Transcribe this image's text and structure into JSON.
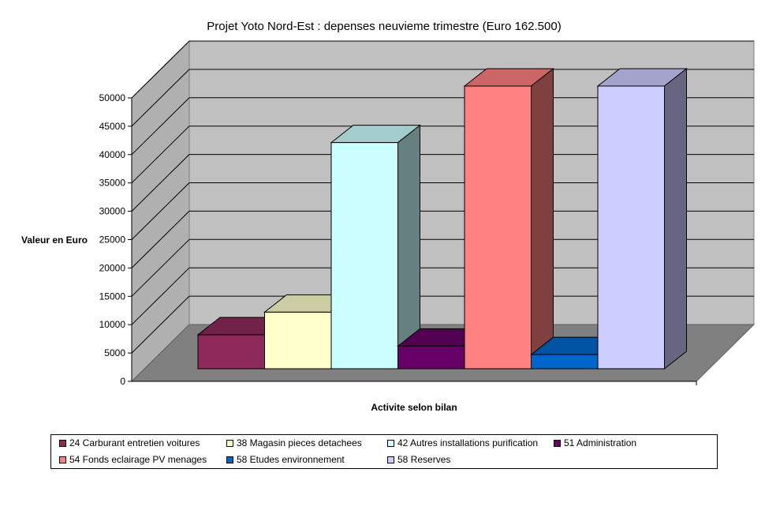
{
  "chart_data": {
    "type": "bar",
    "title": "Projet Yoto Nord-Est : depenses neuvieme trimestre (Euro 162.500)",
    "xlabel": "Activite selon bilan",
    "ylabel": "Valeur en Euro",
    "ylim": [
      0,
      50000
    ],
    "yticks": [
      "0",
      "5000",
      "10000",
      "15000",
      "20000",
      "25000",
      "30000",
      "35000",
      "40000",
      "45000",
      "50000"
    ],
    "grid": true,
    "legend_position": "bottom",
    "series": [
      {
        "name": "24 Carburant entretien voitures",
        "value": 6000,
        "color": "#8E2A5A"
      },
      {
        "name": "38 Magasin pieces detachees",
        "value": 10000,
        "color": "#FFFFCC"
      },
      {
        "name": "42 Autres installations purification",
        "value": 40000,
        "color": "#CCFFFF"
      },
      {
        "name": "51 Administration",
        "value": 4000,
        "color": "#660066"
      },
      {
        "name": "54 Fonds eclairage PV menages",
        "value": 50000,
        "color": "#FF8080"
      },
      {
        "name": "58 Etudes environnement",
        "value": 2500,
        "color": "#0066CC"
      },
      {
        "name": "58 Reserves",
        "value": 50000,
        "color": "#CCCCFF"
      }
    ]
  }
}
